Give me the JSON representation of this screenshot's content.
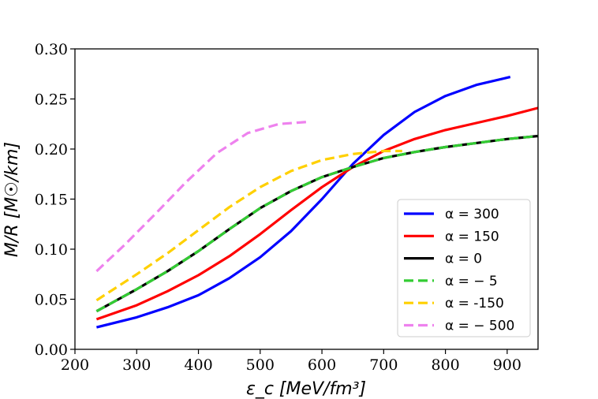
{
  "chart_data": {
    "type": "line",
    "xlabel": "ε_c [MeV/fm³]",
    "ylabel": "M/R [M☉/km]",
    "xlim": [
      200,
      950
    ],
    "ylim": [
      0.0,
      0.3
    ],
    "xticks": [
      200,
      300,
      400,
      500,
      600,
      700,
      800,
      900
    ],
    "yticks": [
      0.0,
      0.05,
      0.1,
      0.15,
      0.2,
      0.25,
      0.3
    ],
    "xtick_labels": [
      "200",
      "300",
      "400",
      "500",
      "600",
      "700",
      "800",
      "900"
    ],
    "ytick_labels": [
      "0.00",
      "0.05",
      "0.10",
      "0.15",
      "0.20",
      "0.25",
      "0.30"
    ],
    "grid": false,
    "legend_position": "lower-right",
    "series": [
      {
        "name": "α = 300",
        "color": "#0000ff",
        "style": "solid",
        "x": [
          235,
          300,
          350,
          400,
          450,
          500,
          550,
          600,
          650,
          700,
          750,
          800,
          850,
          905
        ],
        "y": [
          0.022,
          0.032,
          0.042,
          0.054,
          0.071,
          0.092,
          0.118,
          0.15,
          0.185,
          0.214,
          0.237,
          0.253,
          0.264,
          0.272
        ]
      },
      {
        "name": "α = 150",
        "color": "#ff0000",
        "style": "solid",
        "x": [
          235,
          300,
          350,
          400,
          450,
          500,
          550,
          600,
          650,
          700,
          750,
          800,
          850,
          900,
          950
        ],
        "y": [
          0.03,
          0.044,
          0.058,
          0.074,
          0.093,
          0.115,
          0.139,
          0.162,
          0.182,
          0.198,
          0.21,
          0.219,
          0.226,
          0.233,
          0.241
        ]
      },
      {
        "name": "α = 0",
        "color": "#000000",
        "style": "solid",
        "x": [
          235,
          300,
          350,
          400,
          450,
          500,
          550,
          600,
          650,
          700,
          750,
          800,
          850,
          900,
          950
        ],
        "y": [
          0.038,
          0.06,
          0.078,
          0.098,
          0.12,
          0.141,
          0.158,
          0.172,
          0.182,
          0.191,
          0.197,
          0.202,
          0.206,
          0.21,
          0.213
        ]
      },
      {
        "name": "α = − 5",
        "color": "#33cc33",
        "style": "dashed",
        "x": [
          235,
          300,
          350,
          400,
          450,
          500,
          550,
          600,
          650,
          700,
          750,
          800,
          850,
          900,
          950
        ],
        "y": [
          0.038,
          0.06,
          0.078,
          0.098,
          0.12,
          0.141,
          0.158,
          0.172,
          0.182,
          0.191,
          0.197,
          0.202,
          0.206,
          0.21,
          0.213
        ]
      },
      {
        "name": "α = -150",
        "color": "#ffd000",
        "style": "dashed",
        "x": [
          235,
          300,
          350,
          400,
          450,
          500,
          550,
          600,
          650,
          700,
          730
        ],
        "y": [
          0.049,
          0.075,
          0.096,
          0.119,
          0.142,
          0.162,
          0.178,
          0.189,
          0.195,
          0.198,
          0.198
        ]
      },
      {
        "name": "α = − 500",
        "color": "#ee82ee",
        "style": "dashed",
        "x": [
          235,
          280,
          330,
          380,
          430,
          480,
          530,
          575
        ],
        "y": [
          0.078,
          0.104,
          0.135,
          0.167,
          0.196,
          0.216,
          0.225,
          0.227
        ]
      }
    ]
  }
}
